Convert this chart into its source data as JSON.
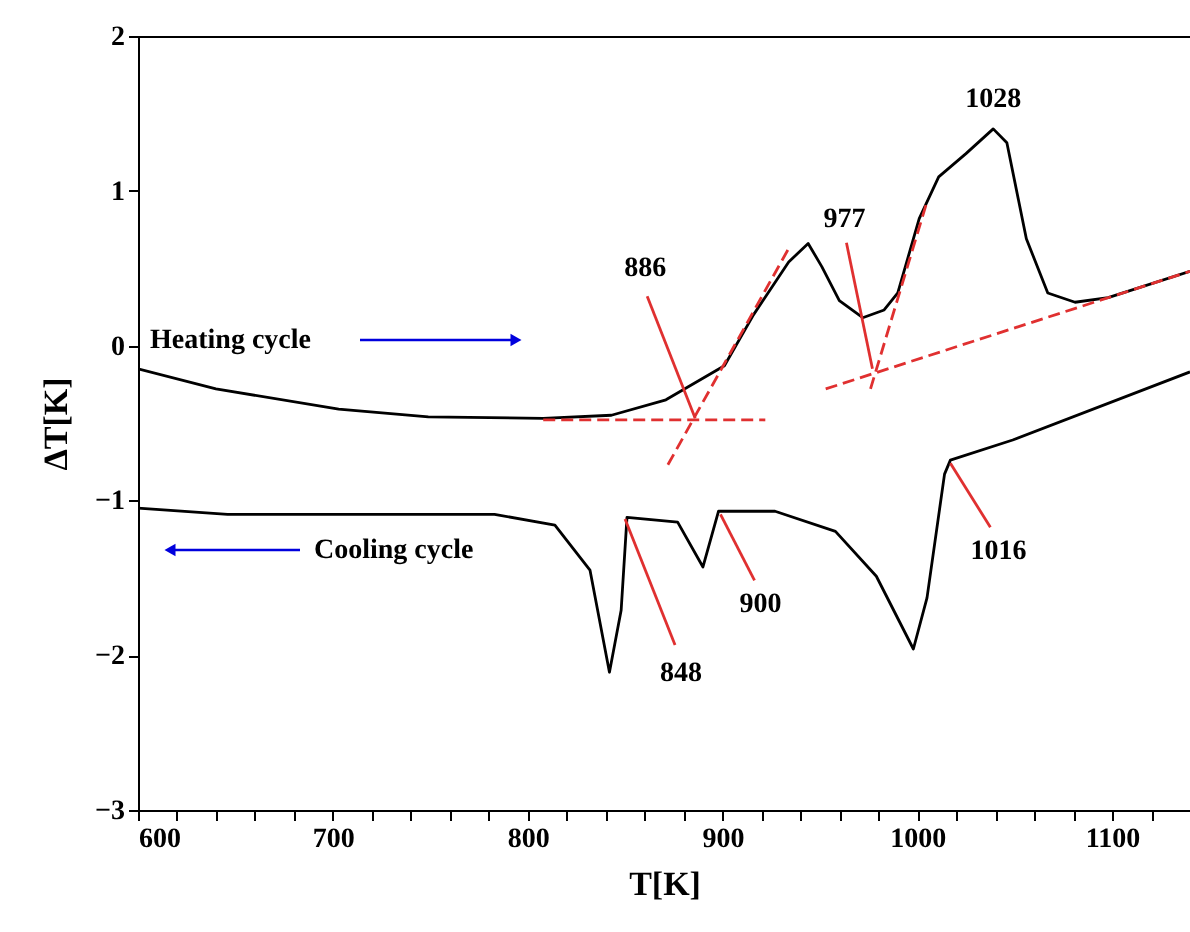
{
  "chart_data": {
    "type": "line",
    "xlabel": "T[K]",
    "ylabel": "ΔT[K]",
    "xlim": [
      600,
      1140
    ],
    "ylim": [
      -3,
      2
    ],
    "xticks": [
      600,
      {
        "value": 620,
        "label": null
      },
      {
        "value": 640,
        "label": null
      },
      {
        "value": 660,
        "label": null
      },
      {
        "value": 680,
        "label": null
      },
      700,
      {
        "value": 720,
        "label": null
      },
      {
        "value": 740,
        "label": null
      },
      {
        "value": 760,
        "label": null
      },
      {
        "value": 780,
        "label": null
      },
      800,
      {
        "value": 820,
        "label": null
      },
      {
        "value": 840,
        "label": null
      },
      {
        "value": 860,
        "label": null
      },
      {
        "value": 880,
        "label": null
      },
      900,
      {
        "value": 920,
        "label": null
      },
      {
        "value": 940,
        "label": null
      },
      {
        "value": 960,
        "label": null
      },
      {
        "value": 980,
        "label": null
      },
      1000,
      {
        "value": 1020,
        "label": null
      },
      {
        "value": 1040,
        "label": null
      },
      {
        "value": 1060,
        "label": null
      },
      {
        "value": 1080,
        "label": null
      },
      1100,
      {
        "value": 1120,
        "label": null
      },
      {
        "value": 1140,
        "label": null
      }
    ],
    "yticks": [
      -3,
      -2,
      -1,
      0,
      1,
      2
    ],
    "grid": false,
    "legend": "left",
    "marker": "none",
    "series": [
      {
        "name": "Heating cycle",
        "color": "#000000",
        "line_style": "solid",
        "x": [
          600,
          640,
          703,
          749,
          808,
          843,
          871,
          901,
          916,
          934,
          944,
          951,
          960,
          972,
          983,
          990,
          1001,
          1011,
          1025,
          1039,
          1046,
          1056,
          1067,
          1081,
          1098,
          1140
        ],
        "values": [
          -0.15,
          -0.28,
          -0.41,
          -0.46,
          -0.47,
          -0.45,
          -0.35,
          -0.13,
          0.2,
          0.54,
          0.66,
          0.51,
          0.29,
          0.18,
          0.23,
          0.34,
          0.82,
          1.09,
          1.24,
          1.4,
          1.31,
          0.69,
          0.34,
          0.28,
          0.31,
          0.48
        ]
      },
      {
        "name": "Cooling cycle",
        "color": "#000000",
        "line_style": "solid",
        "x": [
          600,
          646,
          713,
          783,
          814,
          832,
          842,
          848,
          851,
          877,
          890,
          898,
          927,
          958,
          979,
          998,
          1005,
          1014,
          1017,
          1049,
          1140
        ],
        "values": [
          -1.05,
          -1.09,
          -1.09,
          -1.09,
          -1.16,
          -1.45,
          -2.11,
          -1.71,
          -1.11,
          -1.14,
          -1.43,
          -1.07,
          -1.07,
          -1.2,
          -1.49,
          -1.96,
          -1.63,
          -0.83,
          -0.74,
          -0.61,
          -0.17
        ]
      },
      {
        "color": "#e03030",
        "line_style": "dashed",
        "x": [
          808,
          922
        ],
        "values": [
          -0.48,
          -0.48
        ]
      },
      {
        "color": "#e03030",
        "line_style": "dashed",
        "x": [
          872,
          935
        ],
        "values": [
          -0.77,
          0.65
        ]
      },
      {
        "color": "#e03030",
        "line_style": "dashed",
        "x": [
          953,
          1140
        ],
        "values": [
          -0.28,
          0.48
        ]
      },
      {
        "color": "#e03030",
        "line_style": "dashed",
        "x": [
          976,
          1005
        ],
        "values": [
          -0.28,
          0.93
        ]
      }
    ],
    "annotations": [
      {
        "text": "886",
        "x": 886,
        "y": -0.47
      },
      {
        "text": "977",
        "x": 977,
        "y": -0.15
      },
      {
        "text": "1028",
        "x": 1039,
        "y": 1.4
      },
      {
        "text": "848",
        "x": 850,
        "y": -1.12
      },
      {
        "text": "900",
        "x": 899,
        "y": -1.09
      },
      {
        "text": "1016",
        "x": 1017,
        "y": -0.76
      }
    ]
  }
}
